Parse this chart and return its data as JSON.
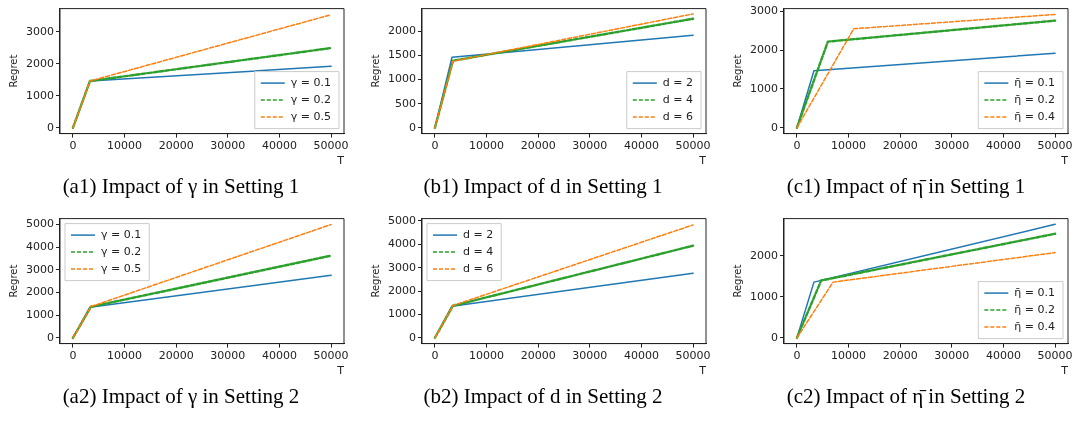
{
  "chart_data": [
    {
      "type": "line",
      "title": "(a1) Impact of γ in Setting 1",
      "xlabel": "T",
      "ylabel": "Regret",
      "legend": "bottom right",
      "xlim": [
        -2500,
        52500
      ],
      "xticks": [
        0,
        10000,
        20000,
        30000,
        40000,
        50000
      ],
      "ylim": [
        -180,
        3720
      ],
      "yticks": [
        0,
        1000,
        2000,
        3000
      ],
      "series": [
        {
          "name": "γ = 0.1",
          "color": "#1f77b4",
          "line_style": "solid",
          "x": [
            0,
            3300,
            50000
          ],
          "values": [
            0,
            1460,
            1920
          ]
        },
        {
          "name": "γ = 0.2",
          "color": "#2ca02c",
          "line_style": "dashed",
          "x": [
            0,
            3300,
            50000
          ],
          "values": [
            0,
            1460,
            2490
          ]
        },
        {
          "name": "γ = 0.5",
          "color": "#ff7f0e",
          "line_style": "dashed",
          "x": [
            0,
            3300,
            50000
          ],
          "values": [
            0,
            1460,
            3530
          ]
        }
      ]
    },
    {
      "type": "line",
      "title": "(b1) Impact of d in Setting 1",
      "xlabel": "T",
      "ylabel": "Regret",
      "legend": "bottom right",
      "xlim": [
        -2500,
        52500
      ],
      "xticks": [
        0,
        10000,
        20000,
        30000,
        40000,
        50000
      ],
      "ylim": [
        -120,
        2470
      ],
      "yticks": [
        0,
        500,
        1000,
        1500,
        2000
      ],
      "series": [
        {
          "name": "d = 2",
          "color": "#1f77b4",
          "line_style": "solid",
          "x": [
            0,
            3300,
            50000
          ],
          "values": [
            0,
            1460,
            1920
          ]
        },
        {
          "name": "d = 4",
          "color": "#2ca02c",
          "line_style": "dashed",
          "x": [
            0,
            3500,
            50000
          ],
          "values": [
            0,
            1390,
            2260
          ]
        },
        {
          "name": "d = 6",
          "color": "#ff7f0e",
          "line_style": "dashed",
          "x": [
            0,
            3500,
            50000
          ],
          "values": [
            0,
            1380,
            2360
          ]
        }
      ]
    },
    {
      "type": "line",
      "title": "(c1) Impact of η̄ in Setting 1",
      "xlabel": "T",
      "ylabel": "Regret",
      "legend": "bottom right",
      "xlim": [
        -2500,
        52500
      ],
      "xticks": [
        0,
        10000,
        20000,
        30000,
        40000,
        50000
      ],
      "ylim": [
        -150,
        3070
      ],
      "yticks": [
        0,
        1000,
        2000,
        3000
      ],
      "series": [
        {
          "name": "η̄ = 0.1",
          "color": "#1f77b4",
          "line_style": "solid",
          "x": [
            0,
            3300,
            50000
          ],
          "values": [
            0,
            1470,
            1920
          ]
        },
        {
          "name": "η̄ = 0.2",
          "color": "#2ca02c",
          "line_style": "dashed",
          "x": [
            0,
            6000,
            50000
          ],
          "values": [
            0,
            2220,
            2760
          ]
        },
        {
          "name": "η̄ = 0.4",
          "color": "#ff7f0e",
          "line_style": "dashed",
          "x": [
            0,
            11000,
            50000
          ],
          "values": [
            0,
            2550,
            2920
          ]
        }
      ]
    },
    {
      "type": "line",
      "title": "(a2) Impact of γ in Setting 2",
      "xlabel": "T",
      "ylabel": "Regret",
      "legend": "top left",
      "xlim": [
        -2500,
        52500
      ],
      "xticks": [
        0,
        10000,
        20000,
        30000,
        40000,
        50000
      ],
      "ylim": [
        -250,
        5250
      ],
      "yticks": [
        0,
        1000,
        2000,
        3000,
        4000,
        5000
      ],
      "series": [
        {
          "name": "γ = 0.1",
          "color": "#1f77b4",
          "line_style": "solid",
          "x": [
            0,
            3300,
            50000
          ],
          "values": [
            0,
            1350,
            2760
          ]
        },
        {
          "name": "γ = 0.2",
          "color": "#2ca02c",
          "line_style": "dashed",
          "x": [
            0,
            3500,
            50000
          ],
          "values": [
            0,
            1370,
            3620
          ]
        },
        {
          "name": "γ = 0.5",
          "color": "#ff7f0e",
          "line_style": "dashed",
          "x": [
            0,
            3500,
            50000
          ],
          "values": [
            0,
            1380,
            4990
          ]
        }
      ]
    },
    {
      "type": "line",
      "title": "(b2) Impact of d in Setting 2",
      "xlabel": "T",
      "ylabel": "Regret",
      "legend": "top left",
      "xlim": [
        -2500,
        52500
      ],
      "xticks": [
        0,
        10000,
        20000,
        30000,
        40000,
        50000
      ],
      "ylim": [
        -250,
        5100
      ],
      "yticks": [
        0,
        1000,
        2000,
        3000,
        4000,
        5000
      ],
      "series": [
        {
          "name": "d = 2",
          "color": "#1f77b4",
          "line_style": "solid",
          "x": [
            0,
            3300,
            50000
          ],
          "values": [
            0,
            1350,
            2760
          ]
        },
        {
          "name": "d = 4",
          "color": "#2ca02c",
          "line_style": "dashed",
          "x": [
            0,
            3500,
            50000
          ],
          "values": [
            0,
            1370,
            3940
          ]
        },
        {
          "name": "d = 6",
          "color": "#ff7f0e",
          "line_style": "dashed",
          "x": [
            0,
            3500,
            50000
          ],
          "values": [
            0,
            1380,
            4830
          ]
        }
      ]
    },
    {
      "type": "line",
      "title": "(c2) Impact of η̄ in Setting 2",
      "xlabel": "T",
      "ylabel": "Regret",
      "legend": "bottom right",
      "xlim": [
        -2500,
        52500
      ],
      "xticks": [
        0,
        10000,
        20000,
        30000,
        40000,
        50000
      ],
      "ylim": [
        -140,
        2910
      ],
      "yticks": [
        0,
        1000,
        2000
      ],
      "series": [
        {
          "name": "η̄ = 0.1",
          "color": "#1f77b4",
          "line_style": "solid",
          "x": [
            0,
            3300,
            50000
          ],
          "values": [
            0,
            1360,
            2770
          ]
        },
        {
          "name": "η̄ = 0.2",
          "color": "#2ca02c",
          "line_style": "dashed",
          "x": [
            0,
            4700,
            50000
          ],
          "values": [
            0,
            1400,
            2540
          ]
        },
        {
          "name": "η̄ = 0.4",
          "color": "#ff7f0e",
          "line_style": "dashed",
          "x": [
            0,
            7000,
            50000
          ],
          "values": [
            0,
            1360,
            2080
          ]
        }
      ]
    }
  ]
}
